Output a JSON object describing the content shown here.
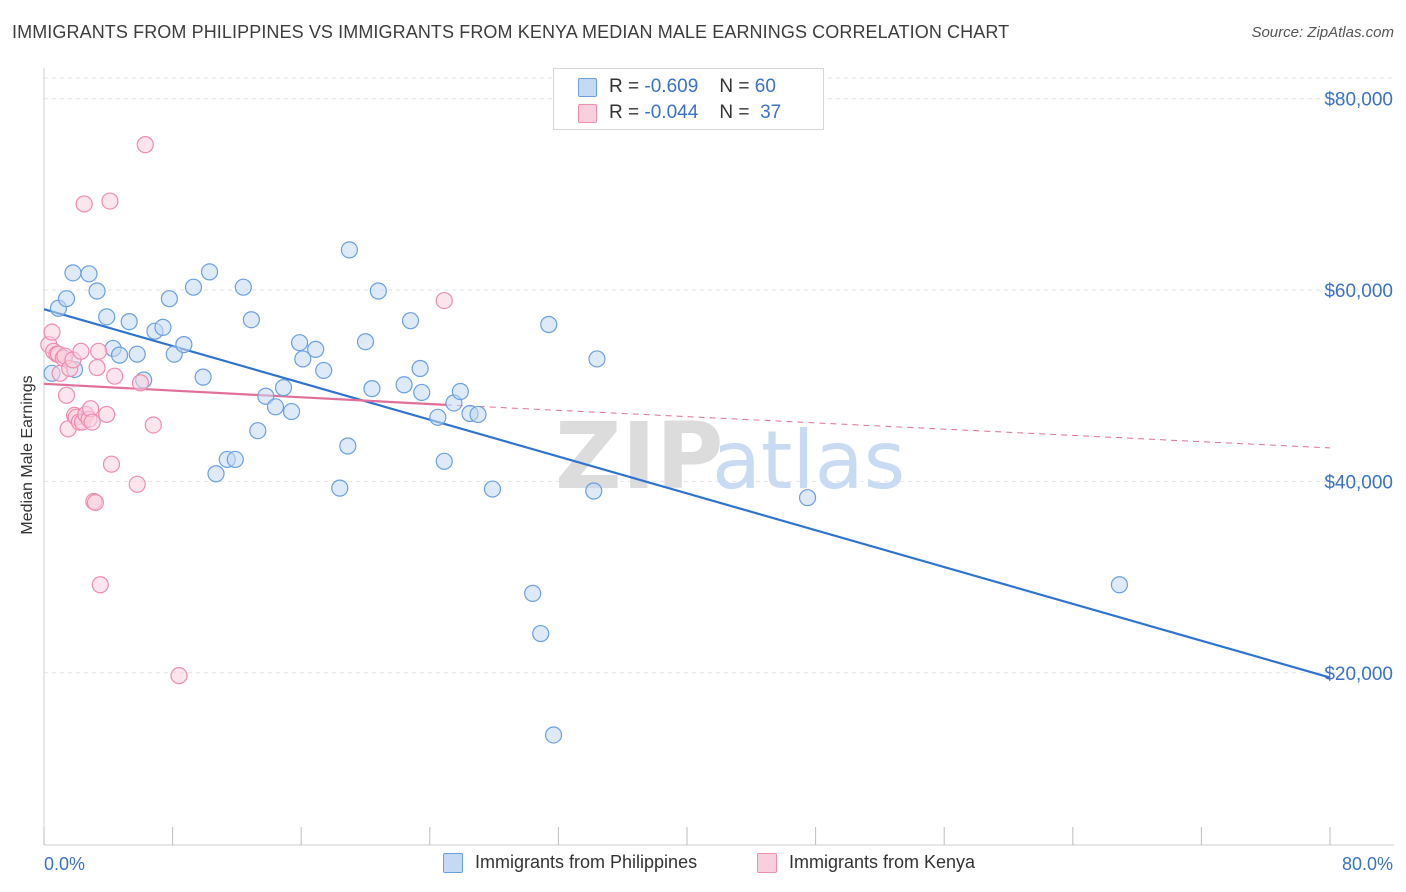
{
  "header": {
    "title": "IMMIGRANTS FROM PHILIPPINES VS IMMIGRANTS FROM KENYA MEDIAN MALE EARNINGS CORRELATION CHART",
    "source": "Source: ZipAtlas.com"
  },
  "watermark": {
    "zip": "ZIP",
    "atlas": "atlas"
  },
  "legend": {
    "rows": [
      {
        "r_label": "R =",
        "r_value": "-0.609",
        "n_label": "N =",
        "n_value": "60",
        "color": "#6aa0e0"
      },
      {
        "r_label": "R =",
        "r_value": "-0.044",
        "n_label": "N =",
        "n_value": "37",
        "color": "#f08cb0"
      }
    ]
  },
  "bottom_legend": {
    "philippines": "Immigrants from Philippines",
    "kenya": "Immigrants from Kenya"
  },
  "colors": {
    "philippines_fill": "#c5d9f3",
    "philippines_stroke": "#6aa0e0",
    "philippines_line": "#2f73d0",
    "kenya_fill": "#f9cfdd",
    "kenya_stroke": "#f08cb0",
    "kenya_line": "#e0709a",
    "tick_label": "#3a72c6"
  },
  "chart_data": {
    "type": "scatter",
    "xlabel": "",
    "ylabel": "Median Male Earnings",
    "xlim": [
      0,
      80
    ],
    "ylim": [
      2000,
      83000
    ],
    "x_tick_labels": [
      "0.0%",
      "80.0%"
    ],
    "y_ticks": [
      20000,
      40000,
      60000,
      80000
    ],
    "y_tick_labels": [
      "$20,000",
      "$40,000",
      "$60,000",
      "$80,000"
    ],
    "grid": true,
    "legend_position": "top-center",
    "series": [
      {
        "name": "Immigrants from Philippines",
        "points": [
          [
            0.5,
            51300
          ],
          [
            0.9,
            58100
          ],
          [
            1.4,
            59100
          ],
          [
            1.9,
            51700
          ],
          [
            1.8,
            61800
          ],
          [
            2.8,
            61700
          ],
          [
            3.3,
            59900
          ],
          [
            3.9,
            57200
          ],
          [
            4.3,
            53900
          ],
          [
            4.7,
            53200
          ],
          [
            5.3,
            56700
          ],
          [
            5.8,
            53300
          ],
          [
            6.2,
            50600
          ],
          [
            6.9,
            55700
          ],
          [
            7.4,
            56100
          ],
          [
            7.8,
            59100
          ],
          [
            8.1,
            53300
          ],
          [
            8.7,
            54300
          ],
          [
            9.3,
            60300
          ],
          [
            9.9,
            50900
          ],
          [
            10.3,
            61900
          ],
          [
            10.7,
            40800
          ],
          [
            11.4,
            42300
          ],
          [
            11.9,
            42300
          ],
          [
            12.4,
            60300
          ],
          [
            12.9,
            56900
          ],
          [
            13.3,
            45300
          ],
          [
            13.8,
            48900
          ],
          [
            14.4,
            47800
          ],
          [
            14.9,
            49800
          ],
          [
            15.4,
            47300
          ],
          [
            15.9,
            54500
          ],
          [
            16.1,
            52800
          ],
          [
            16.9,
            53800
          ],
          [
            17.4,
            51600
          ],
          [
            18.4,
            39300
          ],
          [
            18.9,
            43700
          ],
          [
            19.0,
            64200
          ],
          [
            20.0,
            54600
          ],
          [
            20.4,
            49700
          ],
          [
            20.8,
            59900
          ],
          [
            22.4,
            50100
          ],
          [
            22.8,
            56800
          ],
          [
            23.4,
            51800
          ],
          [
            23.5,
            49300
          ],
          [
            24.5,
            46700
          ],
          [
            24.9,
            42100
          ],
          [
            25.5,
            48200
          ],
          [
            25.9,
            49400
          ],
          [
            26.5,
            47100
          ],
          [
            27.0,
            47000
          ],
          [
            27.9,
            39200
          ],
          [
            30.4,
            28300
          ],
          [
            30.9,
            24100
          ],
          [
            31.4,
            56400
          ],
          [
            31.7,
            13500
          ],
          [
            34.4,
            52800
          ],
          [
            34.2,
            39000
          ],
          [
            47.5,
            38300
          ],
          [
            66.9,
            29200
          ]
        ]
      },
      {
        "name": "Immigrants from Kenya",
        "points": [
          [
            0.3,
            54300
          ],
          [
            0.5,
            55600
          ],
          [
            0.6,
            53600
          ],
          [
            0.8,
            53300
          ],
          [
            0.9,
            53300
          ],
          [
            1.0,
            51300
          ],
          [
            1.2,
            52900
          ],
          [
            1.3,
            53100
          ],
          [
            1.4,
            49000
          ],
          [
            1.5,
            45500
          ],
          [
            1.6,
            51800
          ],
          [
            1.8,
            52700
          ],
          [
            1.9,
            46900
          ],
          [
            2.0,
            46700
          ],
          [
            2.2,
            46200
          ],
          [
            2.3,
            53600
          ],
          [
            2.4,
            46200
          ],
          [
            2.5,
            69000
          ],
          [
            2.6,
            47000
          ],
          [
            2.8,
            46500
          ],
          [
            2.9,
            47600
          ],
          [
            3.0,
            46200
          ],
          [
            3.1,
            37900
          ],
          [
            3.2,
            37800
          ],
          [
            3.3,
            51900
          ],
          [
            3.4,
            53600
          ],
          [
            3.5,
            29200
          ],
          [
            3.9,
            47000
          ],
          [
            4.1,
            69300
          ],
          [
            4.2,
            41800
          ],
          [
            4.4,
            51000
          ],
          [
            5.8,
            39700
          ],
          [
            6.0,
            50300
          ],
          [
            6.3,
            75200
          ],
          [
            6.8,
            45900
          ],
          [
            8.4,
            19700
          ],
          [
            24.9,
            58900
          ]
        ]
      }
    ],
    "trend_lines": [
      {
        "series": "Immigrants from Philippines",
        "from": [
          0,
          58000
        ],
        "to": [
          80,
          19500
        ],
        "style": "solid"
      },
      {
        "series": "Immigrants from Kenya",
        "from": [
          0,
          50200
        ],
        "to": [
          25,
          48000
        ],
        "style": "solid"
      },
      {
        "series": "Immigrants from Kenya",
        "from": [
          25,
          48000
        ],
        "to": [
          80,
          43500
        ],
        "style": "dashed"
      }
    ]
  }
}
